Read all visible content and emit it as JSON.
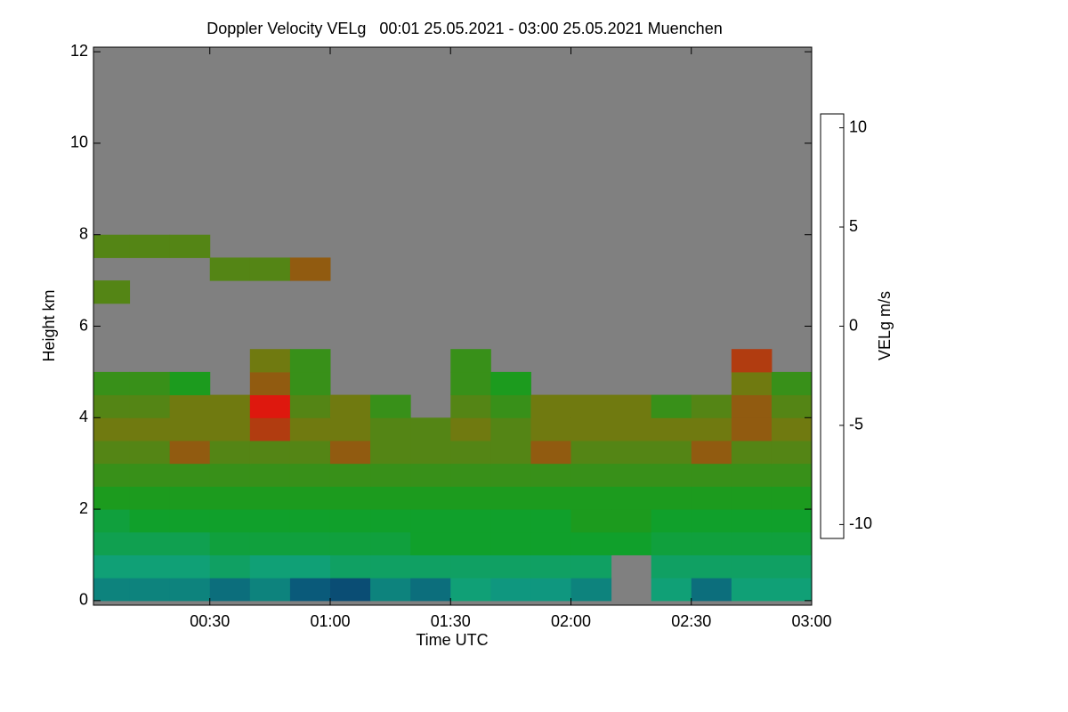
{
  "chart_data": {
    "type": "heatmap",
    "title": "Doppler Velocity VELg   00:01 25.05.2021 - 03:00 25.05.2021 Muenchen",
    "xlabel": "Time UTC",
    "ylabel": "Height km",
    "colorbar_label": "VELg m/s",
    "xlim": [
      1,
      180
    ],
    "xticks": [
      {
        "value": 30,
        "label": "00:30"
      },
      {
        "value": 60,
        "label": "01:00"
      },
      {
        "value": 90,
        "label": "01:30"
      },
      {
        "value": 120,
        "label": "02:00"
      },
      {
        "value": 150,
        "label": "02:30"
      },
      {
        "value": 180,
        "label": "03:00"
      }
    ],
    "ylim": [
      -0.1,
      12.1
    ],
    "yticks": [
      0,
      2,
      4,
      6,
      8,
      10,
      12
    ],
    "clim": [
      -10.7,
      10.7
    ],
    "cticks": [
      -10,
      -5,
      0,
      5,
      10
    ],
    "x": [
      1,
      10,
      20,
      30,
      40,
      50,
      60,
      70,
      80,
      90,
      100,
      110,
      120,
      130,
      140,
      150,
      160,
      170,
      180
    ],
    "y": [
      0,
      0.5,
      1,
      1.5,
      2,
      2.5,
      3,
      3.5,
      4,
      4.5,
      5,
      5.5,
      6,
      6.5,
      7,
      7.5,
      8,
      8.5,
      9,
      9.5,
      10,
      10.5,
      11,
      11.5,
      12
    ],
    "background": "#808080",
    "colorscale": [
      [
        0,
        "#000000"
      ],
      [
        0.1,
        "#0a1a5a"
      ],
      [
        0.22,
        "#0a5a7a"
      ],
      [
        0.3,
        "#10a080"
      ],
      [
        0.42,
        "#10a020"
      ],
      [
        0.5,
        "#707a10"
      ],
      [
        0.58,
        "#e01010"
      ],
      [
        0.72,
        "#c86400"
      ],
      [
        0.85,
        "#f0b000"
      ],
      [
        1,
        "#ffff00"
      ]
    ],
    "values": [
      [
        -5,
        -5,
        -5,
        -5.5,
        -5,
        -6,
        -6.5,
        -5,
        -5.5,
        -4,
        -4.5,
        -4.5,
        -5,
        null,
        -4,
        -5.5,
        -4,
        -4
      ],
      [
        -4,
        -4,
        -4,
        -3.5,
        -4,
        -4,
        -3.5,
        -3.5,
        -3.5,
        -3.5,
        -3.5,
        -3.5,
        -3.5,
        null,
        -3.5,
        -3.5,
        -3.5,
        -3.5
      ],
      [
        -3,
        -3,
        -3,
        -2.5,
        -2.5,
        -2.5,
        -2.5,
        -2.5,
        -2,
        -2,
        -2,
        -2,
        -2,
        -2,
        -2.5,
        -2.5,
        -2.5,
        -2.5
      ],
      [
        -2.5,
        -2,
        -2,
        -2,
        -2,
        -2,
        -2,
        -2,
        -2,
        -2,
        -2,
        -2,
        -1.5,
        -1.5,
        -2,
        -2,
        -2,
        -2
      ],
      [
        -1.5,
        -1.5,
        -1.5,
        -1.5,
        -1.5,
        -1.5,
        -1.5,
        -1.5,
        -1.5,
        -1.5,
        -1.5,
        -1.5,
        -1.5,
        -1.5,
        -1.5,
        -1.5,
        -1.5,
        -1.5
      ],
      [
        -1,
        -1,
        -1,
        -1,
        -1,
        -1,
        -1,
        -1,
        -1,
        -1,
        -1,
        -1,
        -1,
        -1,
        -1,
        -1,
        -1,
        -1
      ],
      [
        -0.5,
        -0.5,
        0.5,
        -0.5,
        -0.5,
        -0.5,
        0.5,
        -0.5,
        -0.5,
        -0.5,
        -0.5,
        0.5,
        -0.5,
        -0.5,
        -0.5,
        0.5,
        -0.5,
        -0.5
      ],
      [
        0,
        0,
        0,
        0,
        1,
        0,
        0,
        -0.5,
        -0.5,
        0,
        -0.5,
        0,
        0,
        0,
        0,
        0,
        0.5,
        0
      ],
      [
        -0.5,
        -0.5,
        0,
        0,
        2,
        -0.5,
        0,
        -1,
        null,
        -0.5,
        -1,
        0,
        0,
        0,
        -1,
        -0.5,
        0.5,
        -0.5
      ],
      [
        -1,
        -1,
        -1.5,
        null,
        0.5,
        -1,
        null,
        null,
        null,
        -1,
        -1.5,
        null,
        null,
        null,
        null,
        null,
        0,
        -1
      ],
      [
        null,
        null,
        null,
        null,
        0,
        -1,
        null,
        null,
        null,
        -1,
        null,
        null,
        null,
        null,
        null,
        null,
        1,
        null
      ],
      [
        null,
        null,
        null,
        null,
        null,
        null,
        null,
        null,
        null,
        null,
        null,
        null,
        null,
        null,
        null,
        null,
        null,
        null
      ],
      [
        null,
        null,
        null,
        null,
        null,
        null,
        null,
        null,
        null,
        null,
        null,
        null,
        null,
        null,
        null,
        null,
        null,
        null
      ],
      [
        -0.5,
        null,
        null,
        null,
        null,
        null,
        null,
        null,
        null,
        null,
        null,
        null,
        null,
        null,
        null,
        null,
        null,
        null
      ],
      [
        null,
        null,
        null,
        -0.5,
        -0.5,
        0.5,
        null,
        null,
        null,
        null,
        null,
        null,
        null,
        null,
        null,
        null,
        null,
        null
      ],
      [
        -0.5,
        -0.5,
        -0.5,
        null,
        null,
        null,
        null,
        null,
        null,
        null,
        null,
        null,
        null,
        null,
        null,
        null,
        null,
        null
      ],
      [
        null,
        null,
        null,
        null,
        null,
        null,
        null,
        null,
        null,
        null,
        null,
        null,
        null,
        null,
        null,
        null,
        null,
        null
      ],
      [
        null,
        null,
        null,
        null,
        null,
        null,
        null,
        null,
        null,
        null,
        null,
        null,
        null,
        null,
        null,
        null,
        null,
        null
      ],
      [
        null,
        null,
        null,
        null,
        null,
        null,
        null,
        null,
        null,
        null,
        null,
        null,
        null,
        null,
        null,
        null,
        null,
        null
      ],
      [
        null,
        null,
        null,
        null,
        null,
        null,
        null,
        null,
        null,
        null,
        null,
        null,
        null,
        null,
        null,
        null,
        null,
        null
      ],
      [
        null,
        null,
        null,
        null,
        null,
        null,
        null,
        null,
        null,
        null,
        null,
        null,
        null,
        null,
        null,
        null,
        null,
        null
      ],
      [
        null,
        null,
        null,
        null,
        null,
        null,
        null,
        null,
        null,
        null,
        null,
        null,
        null,
        null,
        null,
        null,
        null,
        null
      ],
      [
        null,
        null,
        null,
        null,
        null,
        null,
        null,
        null,
        null,
        null,
        null,
        null,
        null,
        null,
        null,
        null,
        null,
        null
      ],
      [
        null,
        null,
        null,
        null,
        null,
        null,
        null,
        null,
        null,
        null,
        null,
        null,
        null,
        null,
        null,
        null,
        null,
        null
      ]
    ]
  }
}
